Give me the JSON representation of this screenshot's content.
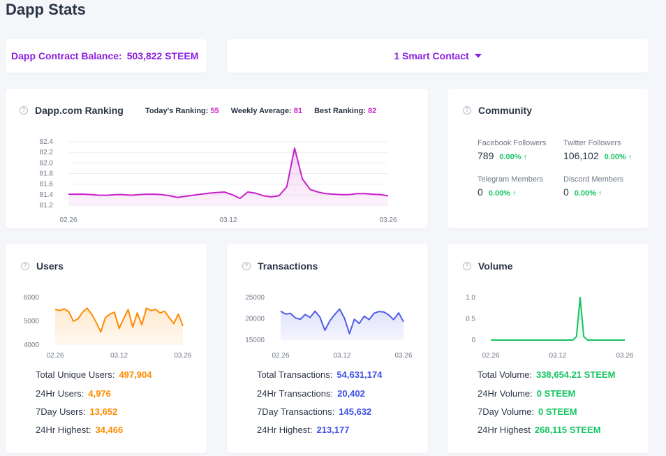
{
  "page_title": "Dapp Stats",
  "balance": {
    "label": "Dapp Contract Balance:",
    "value": "503,822 STEEM"
  },
  "contract_selector": {
    "label": "1 Smart Contact"
  },
  "colors": {
    "purple": "#8b1fe0",
    "magenta": "#c920c9",
    "orange": "#ff8a00",
    "blue": "#3d4fe6",
    "green": "#15c463"
  },
  "icons": {
    "help": "question-circle-icon",
    "dropdown": "caret-down-icon"
  },
  "ranking": {
    "title": "Dapp.com Ranking",
    "todays_label": "Today's Ranking:",
    "todays_value": "55",
    "weekly_label": "Weekly Average:",
    "weekly_value": "81",
    "best_label": "Best Ranking:",
    "best_value": "82"
  },
  "community": {
    "title": "Community",
    "facebook": {
      "label": "Facebook Followers",
      "value": "789",
      "change": "0.00% ↑"
    },
    "twitter": {
      "label": "Twitter Followers",
      "value": "106,102",
      "change": "0.00% ↑"
    },
    "telegram": {
      "label": "Telegram Members",
      "value": "0",
      "change": "0.00% ↑"
    },
    "discord": {
      "label": "Discord Members",
      "value": "0",
      "change": "0.00% ↑"
    }
  },
  "users": {
    "title": "Users",
    "total_label": "Total Unique Users:",
    "total_value": "497,904",
    "h24_label": "24Hr Users:",
    "h24_value": "4,976",
    "d7_label": "7Day Users:",
    "d7_value": "13,652",
    "high_label": "24Hr Highest:",
    "high_value": "34,466"
  },
  "transactions": {
    "title": "Transactions",
    "total_label": "Total Transactions:",
    "total_value": "54,631,174",
    "h24_label": "24Hr Transactions:",
    "h24_value": "20,402",
    "d7_label": "7Day Transactions:",
    "d7_value": "145,632",
    "high_label": "24Hr Highest:",
    "high_value": "213,177"
  },
  "volume": {
    "title": "Volume",
    "total_label": "Total Volume:",
    "total_value": "338,654.21 STEEM",
    "h24_label": "24Hr Volume:",
    "h24_value": "0 STEEM",
    "d7_label": "7Day Volume:",
    "d7_value": "0 STEEM",
    "high_label": "24Hr Highest",
    "high_value": "268,115 STEEM"
  },
  "chart_data": [
    {
      "type": "area",
      "id": "ranking",
      "color": "#c920c9",
      "x_ticks": [
        "02.26",
        "03.12",
        "03.26"
      ],
      "y_ticks": [
        "82.4",
        "82.2",
        "82.0",
        "81.8",
        "81.6",
        "81.4",
        "81.2"
      ],
      "ylim": [
        81.2,
        82.4
      ],
      "values": [
        81.41,
        81.41,
        81.41,
        81.4,
        81.39,
        81.39,
        81.4,
        81.4,
        81.39,
        81.4,
        81.41,
        81.41,
        81.4,
        81.38,
        81.35,
        81.37,
        81.39,
        81.41,
        81.43,
        81.44,
        81.45,
        81.4,
        81.33,
        81.45,
        81.43,
        81.38,
        81.36,
        81.38,
        81.55,
        82.28,
        81.7,
        81.5,
        81.45,
        81.42,
        81.41,
        81.4,
        81.4,
        81.42,
        81.42,
        81.41,
        81.4,
        81.38
      ]
    },
    {
      "type": "area",
      "id": "users",
      "color": "#ff8a00",
      "x_ticks": [
        "02.26",
        "03.12",
        "03.26"
      ],
      "y_ticks": [
        "6000",
        "5000",
        "4000"
      ],
      "ylim": [
        4000,
        6000
      ],
      "values": [
        5500,
        5450,
        5520,
        5400,
        5000,
        5100,
        5380,
        5550,
        5300,
        4950,
        4550,
        5150,
        5300,
        5380,
        4700,
        5100,
        5500,
        4750,
        5350,
        4850,
        5550,
        5450,
        5500,
        5350,
        5420,
        5150,
        4900,
        5300,
        4800
      ]
    },
    {
      "type": "area",
      "id": "transactions",
      "color": "#4f5de8",
      "x_ticks": [
        "02.26",
        "03.12",
        "03.26"
      ],
      "y_ticks": [
        "25000",
        "20000",
        "15000"
      ],
      "ylim": [
        15000,
        25000
      ],
      "values": [
        21800,
        21100,
        21300,
        20200,
        19900,
        21000,
        20300,
        21800,
        20400,
        17300,
        19500,
        21000,
        22300,
        20100,
        16500,
        19900,
        18900,
        20600,
        19800,
        21300,
        21700,
        21600,
        20900,
        19800,
        21400,
        19300
      ]
    },
    {
      "type": "area",
      "id": "volume",
      "color": "#15c463",
      "x_ticks": [
        "02.26",
        "03.12",
        "03.26"
      ],
      "y_ticks": [
        "1.0",
        "0.5",
        "0"
      ],
      "ylim": [
        0,
        1
      ],
      "values": [
        0,
        0,
        0,
        0,
        0,
        0,
        0,
        0,
        0,
        0,
        0,
        0,
        0,
        0,
        0,
        0,
        0,
        0,
        0,
        0,
        0,
        0,
        0,
        0.08,
        1.0,
        0.08,
        0,
        0,
        0,
        0,
        0,
        0,
        0,
        0,
        0,
        0,
        0
      ]
    }
  ]
}
